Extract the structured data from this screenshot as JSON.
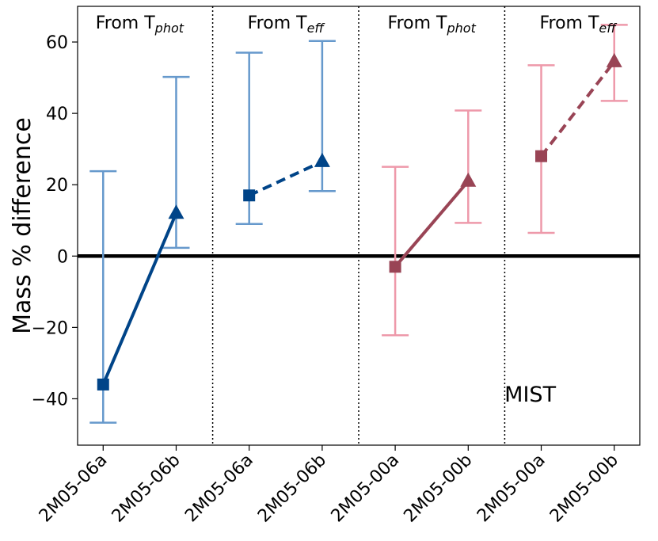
{
  "chart_data": {
    "type": "scatter",
    "ylabel": "Mass % difference",
    "ylim": [
      -53,
      70
    ],
    "yticks": [
      -40,
      -20,
      0,
      20,
      40,
      60
    ],
    "categories": [
      "2M05-06a",
      "2M05-06b",
      "2M05-06a",
      "2M05-06b",
      "2M05-00a",
      "2M05-00b",
      "2M05-00a",
      "2M05-00b"
    ],
    "panels": [
      {
        "label_base": "From T",
        "label_sub": "phot"
      },
      {
        "label_base": "From T",
        "label_sub": "eff"
      },
      {
        "label_base": "From T",
        "label_sub": "phot"
      },
      {
        "label_base": "From T",
        "label_sub": "eff"
      }
    ],
    "annotation": "MIST",
    "zero_line": 0,
    "series": [
      {
        "x": [
          0,
          1
        ],
        "values": [
          -36,
          12
        ],
        "err_low": [
          -46.7,
          2.3
        ],
        "err_high": [
          23.8,
          50.2
        ],
        "line": "solid",
        "color": "#004488",
        "err_color": "#6699cc"
      },
      {
        "x": [
          2,
          3
        ],
        "values": [
          17,
          26.5
        ],
        "err_low": [
          9,
          18.2
        ],
        "err_high": [
          57,
          60.3
        ],
        "line": "dashed",
        "color": "#004488",
        "err_color": "#6699cc"
      },
      {
        "x": [
          4,
          5
        ],
        "values": [
          -3,
          21
        ],
        "err_low": [
          -22.2,
          9.3
        ],
        "err_high": [
          25,
          40.8
        ],
        "line": "solid",
        "color": "#994455",
        "err_color": "#ee99aa"
      },
      {
        "x": [
          6,
          7
        ],
        "values": [
          28,
          54.5
        ],
        "err_low": [
          6.5,
          43.5
        ],
        "err_high": [
          53.5,
          64.8
        ],
        "line": "dashed",
        "color": "#994455",
        "err_color": "#ee99aa"
      }
    ]
  }
}
